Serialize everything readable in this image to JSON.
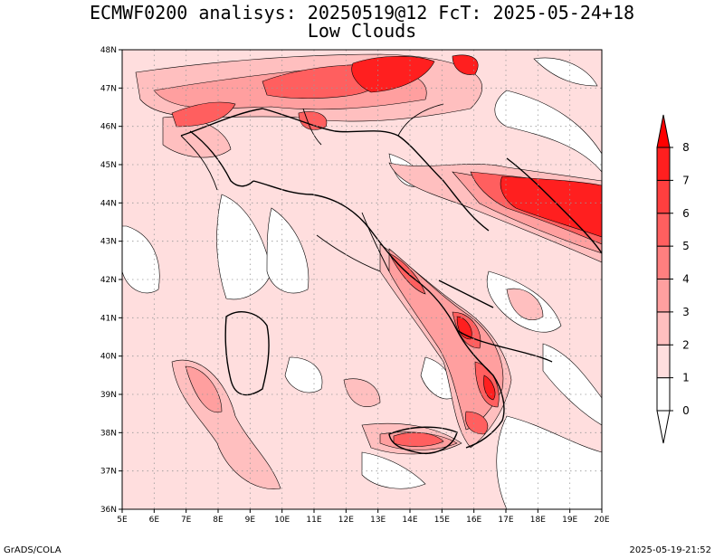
{
  "title": {
    "line1": "ECMWF0200 analisys: 20250519@12 FcT: 2025-05-24+18",
    "line2": "Low Clouds"
  },
  "map": {
    "lon_range": [
      5,
      20
    ],
    "lat_range": [
      36,
      48
    ],
    "lon_ticks": [
      "5E",
      "6E",
      "7E",
      "8E",
      "9E",
      "10E",
      "11E",
      "12E",
      "13E",
      "14E",
      "15E",
      "16E",
      "17E",
      "18E",
      "19E",
      "20E"
    ],
    "lat_ticks": [
      "48N",
      "47N",
      "46N",
      "45N",
      "44N",
      "43N",
      "42N",
      "41N",
      "40N",
      "39N",
      "38N",
      "37N",
      "36N"
    ],
    "grid": "dotted"
  },
  "colorbar": {
    "labels": [
      "0",
      "1",
      "2",
      "3",
      "4",
      "5",
      "6",
      "7",
      "8"
    ],
    "colors": [
      "#ffffff",
      "#ffdede",
      "#ffbfbf",
      "#ff9f9f",
      "#ff7f7f",
      "#ff5f5f",
      "#ff3f3f",
      "#ff1f1f"
    ]
  },
  "footer": {
    "left": "GrADS/COLA",
    "right": "2025-05-19-21:52"
  }
}
